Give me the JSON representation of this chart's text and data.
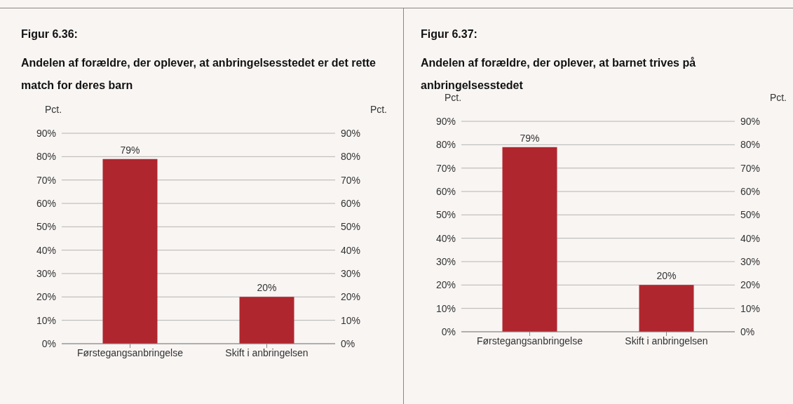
{
  "chart_data": [
    {
      "type": "bar",
      "title": "Figur 6.36:",
      "subtitle": "Andelen af forældre, der oplever, at anbringelsesstedet er det rette match for deres barn",
      "ylabel": "Pct.",
      "y2label": "Pct.",
      "categories": [
        "Førstegangsanbringelse",
        "Skift i anbringelsen"
      ],
      "values": [
        79,
        20
      ],
      "value_labels": [
        "79%",
        "20%"
      ],
      "color": "#b0262e",
      "ylim": [
        0,
        90
      ],
      "yticks": [
        {
          "value": 0,
          "label": "0%"
        },
        {
          "value": 10,
          "label": "10%"
        },
        {
          "value": 20,
          "label": "20%"
        },
        {
          "value": 30,
          "label": "30%"
        },
        {
          "value": 40,
          "label": "40%"
        },
        {
          "value": 50,
          "label": "50%"
        },
        {
          "value": 60,
          "label": "60%"
        },
        {
          "value": 70,
          "label": "70%"
        },
        {
          "value": 80,
          "label": "80%"
        },
        {
          "value": 90,
          "label": "90%"
        }
      ],
      "y2lim": [
        0,
        90
      ],
      "y2ticks": [
        {
          "value": 0,
          "label": "0%"
        },
        {
          "value": 10,
          "label": "10%"
        },
        {
          "value": 20,
          "label": "20%"
        },
        {
          "value": 30,
          "label": "30%"
        },
        {
          "value": 40,
          "label": "40%"
        },
        {
          "value": 50,
          "label": "50%"
        },
        {
          "value": 60,
          "label": "60%"
        },
        {
          "value": 70,
          "label": "70%"
        },
        {
          "value": 80,
          "label": "80%"
        },
        {
          "value": 90,
          "label": "90%"
        }
      ],
      "grid": "y"
    },
    {
      "type": "bar",
      "title": "Figur 6.37:",
      "subtitle": "Andelen af forældre, der oplever, at barnet trives på anbringelsesstedet",
      "ylabel": "Pct.",
      "y2label": "Pct.",
      "categories": [
        "Førstegangsanbringelse",
        "Skift i anbringelsen"
      ],
      "values": [
        79,
        20
      ],
      "value_labels": [
        "79%",
        "20%"
      ],
      "color": "#b0262e",
      "ylim": [
        0,
        90
      ],
      "yticks": [
        {
          "value": 0,
          "label": "0%"
        },
        {
          "value": 10,
          "label": "10%"
        },
        {
          "value": 20,
          "label": "20%"
        },
        {
          "value": 30,
          "label": "30%"
        },
        {
          "value": 40,
          "label": "40%"
        },
        {
          "value": 50,
          "label": "50%"
        },
        {
          "value": 60,
          "label": "60%"
        },
        {
          "value": 70,
          "label": "70%"
        },
        {
          "value": 80,
          "label": "80%"
        },
        {
          "value": 90,
          "label": "90%"
        }
      ],
      "y2lim": [
        0,
        90
      ],
      "y2ticks": [
        {
          "value": 0,
          "label": "0%"
        },
        {
          "value": 10,
          "label": "10%"
        },
        {
          "value": 20,
          "label": "20%"
        },
        {
          "value": 30,
          "label": "30%"
        },
        {
          "value": 40,
          "label": "40%"
        },
        {
          "value": 50,
          "label": "50%"
        },
        {
          "value": 60,
          "label": "60%"
        },
        {
          "value": 70,
          "label": "70%"
        },
        {
          "value": 80,
          "label": "80%"
        },
        {
          "value": 90,
          "label": "90%"
        }
      ],
      "grid": "y"
    }
  ]
}
